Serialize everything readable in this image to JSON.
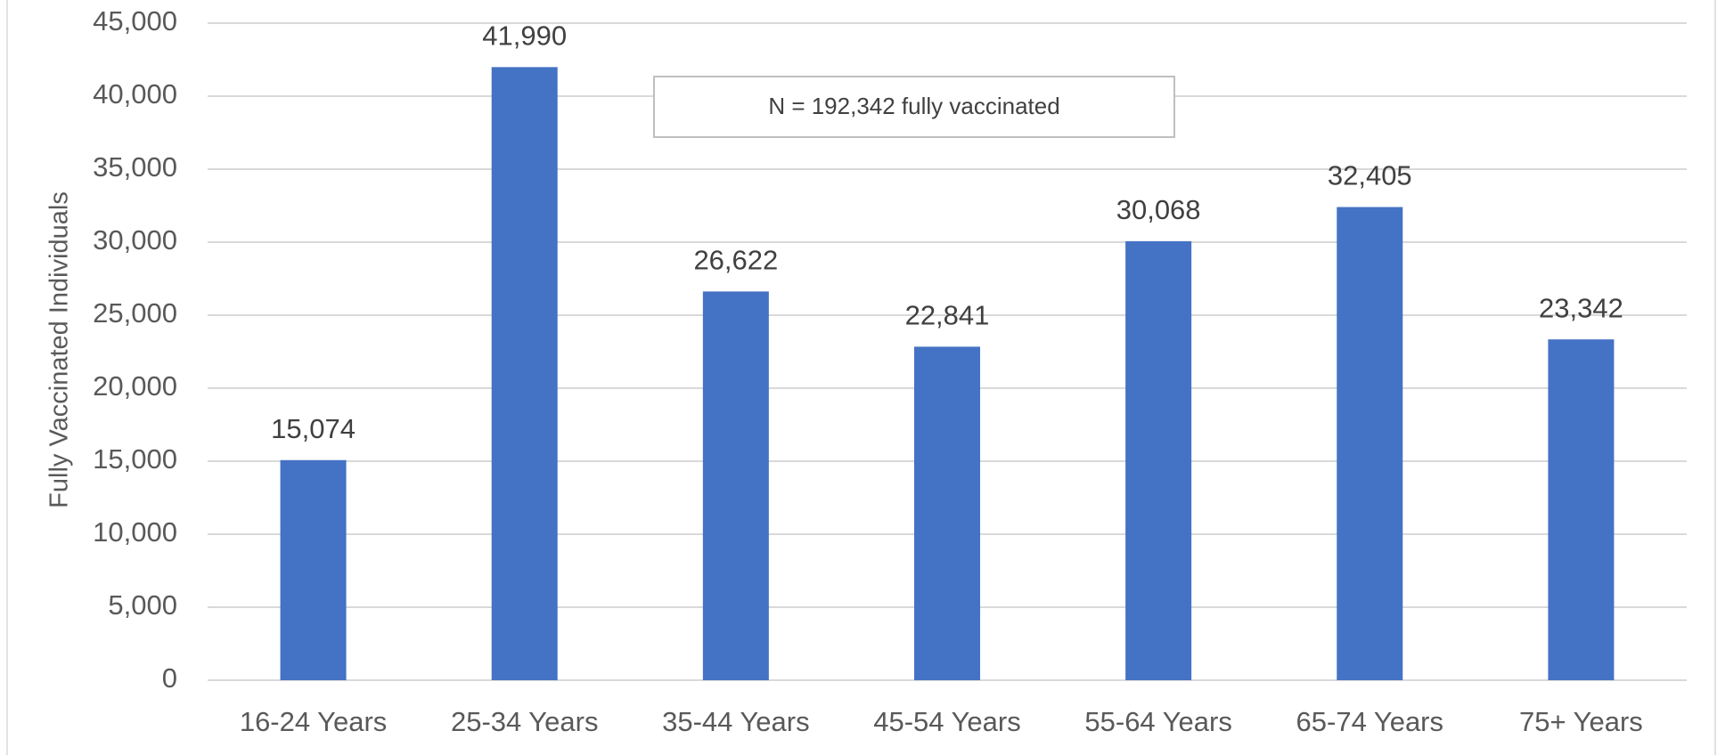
{
  "chart_data": {
    "type": "bar",
    "y_label": "Fully Vaccinated Individuals",
    "annotation": "N = 192,342 fully vaccinated",
    "categories": [
      "16-24 Years",
      "25-34 Years",
      "35-44 Years",
      "45-54 Years",
      "55-64 Years",
      "65-74 Years",
      "75+ Years"
    ],
    "values": [
      15074,
      41990,
      26622,
      22841,
      30068,
      32405,
      23342
    ],
    "value_labels": [
      "15,074",
      "41,990",
      "26,622",
      "22,841",
      "30,068",
      "32,405",
      "23,342"
    ],
    "color": "#4472c4",
    "ylim": [
      0,
      45000
    ],
    "yticks": [
      0,
      {
        "value": 5000,
        "label": "5,000"
      },
      {
        "value": 10000,
        "label": "10,000"
      },
      {
        "value": 15000,
        "label": "15,000"
      },
      {
        "value": 20000,
        "label": "20,000"
      },
      {
        "value": 25000,
        "label": "25,000"
      },
      {
        "value": 30000,
        "label": "30,000"
      },
      {
        "value": 35000,
        "label": "35,000"
      },
      {
        "value": 40000,
        "label": "40,000"
      },
      {
        "value": 45000,
        "label": "45,000"
      }
    ],
    "grid": true
  }
}
